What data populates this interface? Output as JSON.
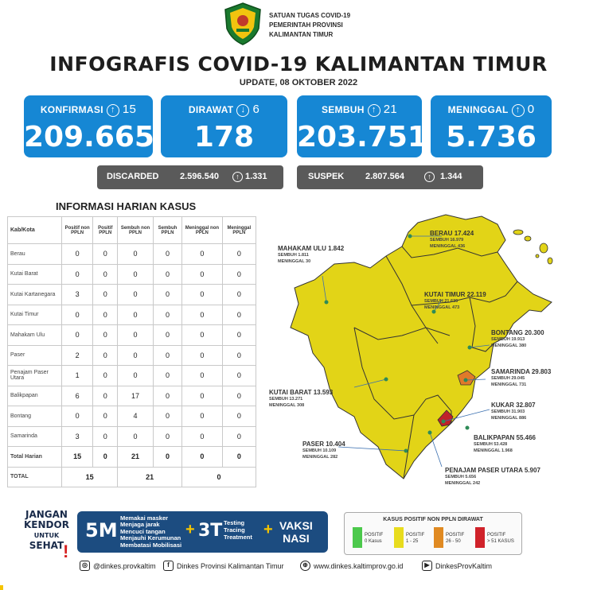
{
  "header": {
    "org_lines": [
      "SATUAN TUGAS COVID-19",
      "PEMERINTAH PROVINSI",
      "KALIMANTAN TIMUR"
    ],
    "title": "INFOGRAFIS COVID-19 KALIMANTAN TIMUR",
    "update": "UPDATE, 08 OKTOBER 2022"
  },
  "stats": [
    {
      "label": "KONFIRMASI",
      "arrow": "↑",
      "delta": "15",
      "value": "209.665"
    },
    {
      "label": "DIRAWAT",
      "arrow": "↓",
      "delta": "6",
      "value": "178"
    },
    {
      "label": "SEMBUH",
      "arrow": "↑",
      "delta": "21",
      "value": "203.751"
    },
    {
      "label": "MENINGGAL",
      "arrow": "↑",
      "delta": "0",
      "value": "5.736"
    }
  ],
  "discarded": {
    "label": "DISCARDED",
    "value": "2.596.540",
    "arrow": "↑",
    "delta": "1.331"
  },
  "suspek": {
    "label": "SUSPEK",
    "value": "2.807.564",
    "arrow": "↑",
    "delta": "1.344"
  },
  "table": {
    "title": "INFORMASI HARIAN KASUS",
    "headers": [
      "Kab/Kota",
      "Positif non PPLN",
      "Positif PPLN",
      "Sembuh non PPLN",
      "Sembuh PPLN",
      "Meninggal non PPLN",
      "Meninggal PPLN"
    ],
    "rows": [
      {
        "kab": "Berau",
        "v": [
          "0",
          "0",
          "0",
          "0",
          "0",
          "0"
        ]
      },
      {
        "kab": "Kutai Barat",
        "v": [
          "0",
          "0",
          "0",
          "0",
          "0",
          "0"
        ]
      },
      {
        "kab": "Kutai Kartanegara",
        "v": [
          "3",
          "0",
          "0",
          "0",
          "0",
          "0"
        ]
      },
      {
        "kab": "Kutai Timur",
        "v": [
          "0",
          "0",
          "0",
          "0",
          "0",
          "0"
        ]
      },
      {
        "kab": "Mahakam Ulu",
        "v": [
          "0",
          "0",
          "0",
          "0",
          "0",
          "0"
        ]
      },
      {
        "kab": "Paser",
        "v": [
          "2",
          "0",
          "0",
          "0",
          "0",
          "0"
        ]
      },
      {
        "kab": "Penajam Paser Utara",
        "v": [
          "1",
          "0",
          "0",
          "0",
          "0",
          "0"
        ]
      },
      {
        "kab": "Balikpapan",
        "v": [
          "6",
          "0",
          "17",
          "0",
          "0",
          "0"
        ]
      },
      {
        "kab": "Bontang",
        "v": [
          "0",
          "0",
          "4",
          "0",
          "0",
          "0"
        ]
      },
      {
        "kab": "Samarinda",
        "v": [
          "3",
          "0",
          "0",
          "0",
          "0",
          "0"
        ]
      },
      {
        "kab": "Total Harian",
        "v": [
          "15",
          "0",
          "21",
          "0",
          "0",
          "0"
        ]
      }
    ],
    "total_label": "TOTAL",
    "total_values": [
      "15",
      "21",
      "0"
    ]
  },
  "map": {
    "regions": [
      {
        "name": "BERAU",
        "count": "17.424",
        "sembuh": "SEMBUH 16.979",
        "meninggal": "MENINGGAL 436"
      },
      {
        "name": "MAHAKAM ULU",
        "count": "1.842",
        "sembuh": "SEMBUH 1.811",
        "meninggal": "MENINGGAL 30"
      },
      {
        "name": "KUTAI TIMUR",
        "count": "22.119",
        "sembuh": "SEMBUH 21.636",
        "meninggal": "MENINGGAL 473"
      },
      {
        "name": "BONTANG",
        "count": "20.300",
        "sembuh": "SEMBUH 19.913",
        "meninggal": "MENINGGAL 380"
      },
      {
        "name": "SAMARINDA",
        "count": "29.803",
        "sembuh": "SEMBUH 29.045",
        "meninggal": "MENINGGAL 731"
      },
      {
        "name": "KUTAI BARAT",
        "count": "13.593",
        "sembuh": "SEMBUH 13.271",
        "meninggal": "MENINGGAL 308"
      },
      {
        "name": "KUKAR",
        "count": "32.807",
        "sembuh": "SEMBUH 31.903",
        "meninggal": "MENINGGAL 886"
      },
      {
        "name": "BALIKPAPAN",
        "count": "55.466",
        "sembuh": "SEMBUH 53.428",
        "meninggal": "MENINGGAL 1.968"
      },
      {
        "name": "PASER",
        "count": "10.404",
        "sembuh": "SEMBUH 10.109",
        "meninggal": "MENINGGAL 282"
      },
      {
        "name": "PENAJAM PASER UTARA",
        "count": "5.907",
        "sembuh": "SEMBUH 5.656",
        "meninggal": "MENINGGAL 242"
      }
    ],
    "colors": {
      "land": "#e2d417",
      "border": "#333333",
      "samarinda": "#e07a2a",
      "balikpapan": "#c0212a",
      "sea_islands": "#e2d417"
    }
  },
  "footer": {
    "jangan": [
      "JANGAN",
      "KENDOR",
      "UNTUK",
      "SEHAT"
    ],
    "exclaim": "!",
    "five_m": "5M",
    "five_m_items": [
      "Memakai masker",
      "Menjaga jarak",
      "Mencuci tangan",
      "Menjauhi Kerumunan",
      "Membatasi Mobilisasi"
    ],
    "plus": "+",
    "three_t": "3T",
    "three_t_items": [
      "Testing",
      "Tracing",
      "Treatment"
    ],
    "vaksi": [
      "VAKSI",
      "NASI"
    ],
    "legend_title": "KASUS POSITIF NON PPLN DIRAWAT",
    "legend": [
      {
        "line1": "POSITIF",
        "line2": "0 Kasus",
        "color": "#4cc94c"
      },
      {
        "line1": "POSITIF",
        "line2": "1 - 25",
        "color": "#e8dc1e"
      },
      {
        "line1": "POSITIF",
        "line2": "26 - 50",
        "color": "#e08a22"
      },
      {
        "line1": "POSITIF",
        "line2": "> 51 KASUS",
        "color": "#d0222a"
      }
    ],
    "socials": [
      {
        "icon": "instagram-icon",
        "glyph": "◎",
        "text": "@dinkes.provkaltim"
      },
      {
        "icon": "facebook-icon",
        "glyph": "f",
        "text": "Dinkes Provinsi Kalimantan Timur"
      },
      {
        "icon": "globe-icon",
        "glyph": "⊕",
        "text": "www.dinkes.kaltimprov.go.id"
      },
      {
        "icon": "youtube-icon",
        "glyph": "▶",
        "text": "DinkesProvKaltim"
      }
    ]
  },
  "colors": {
    "card_blue": "#1687d4",
    "pill_gray": "#5a5a5a",
    "band_navy": "#1c4c80",
    "accent_yellow": "#f5c400"
  }
}
